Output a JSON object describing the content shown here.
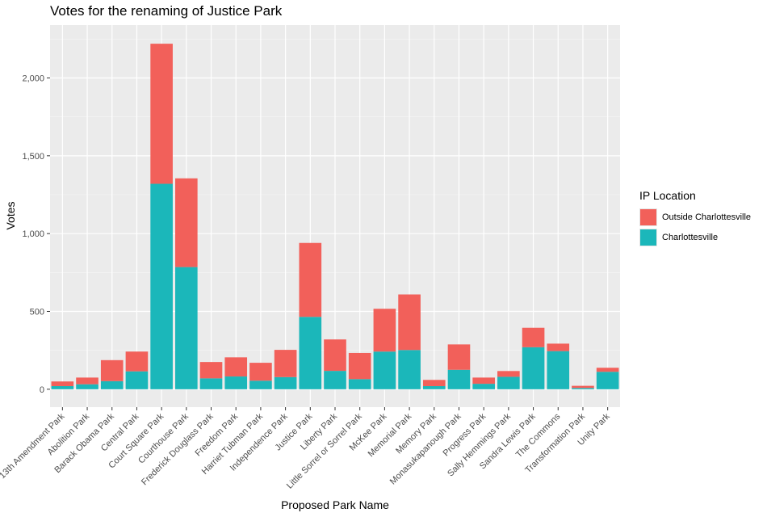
{
  "chart_data": {
    "type": "bar",
    "stacked": true,
    "title": "Votes for the renaming of Justice Park",
    "xlabel": "Proposed Park Name",
    "ylabel": "Votes",
    "ylim": [
      -115,
      2340
    ],
    "yticks": [
      0,
      500,
      1000,
      1500,
      2000
    ],
    "ytick_labels": [
      "0",
      "500",
      "1,000",
      "1,500",
      "2,000"
    ],
    "grid": true,
    "legend_title": "IP Location",
    "legend_position": "right",
    "categories": [
      "13th Amendment Park",
      "Abolition Park",
      "Barack Obama Park",
      "Central Park",
      "Court Square Park",
      "Courthouse Park",
      "Frederick Douglass Park",
      "Freedom Park",
      "Harriet Tubman Park",
      "Independence Park",
      "Justice Park",
      "Liberty Park",
      "Little Sorrel or Sorrel Park",
      "McKee Park",
      "Memorial Park",
      "Memory Park",
      "Monasukapanough Park",
      "Progress Park",
      "Sally Hemmings Park",
      "Sandra Lewis Park",
      "The Commons",
      "Transformation Park",
      "Unity Park"
    ],
    "series": [
      {
        "name": "Charlottesville",
        "color": "#1bb7ba",
        "values": [
          20,
          32,
          52,
          115,
          1320,
          785,
          70,
          82,
          55,
          78,
          465,
          118,
          65,
          242,
          252,
          20,
          125,
          35,
          80,
          270,
          245,
          8,
          112
        ]
      },
      {
        "name": "Outside Charlottesville",
        "color": "#f2605a",
        "values": [
          30,
          43,
          135,
          127,
          900,
          570,
          105,
          123,
          115,
          175,
          475,
          202,
          168,
          275,
          357,
          40,
          163,
          40,
          37,
          125,
          48,
          14,
          26
        ]
      }
    ]
  }
}
